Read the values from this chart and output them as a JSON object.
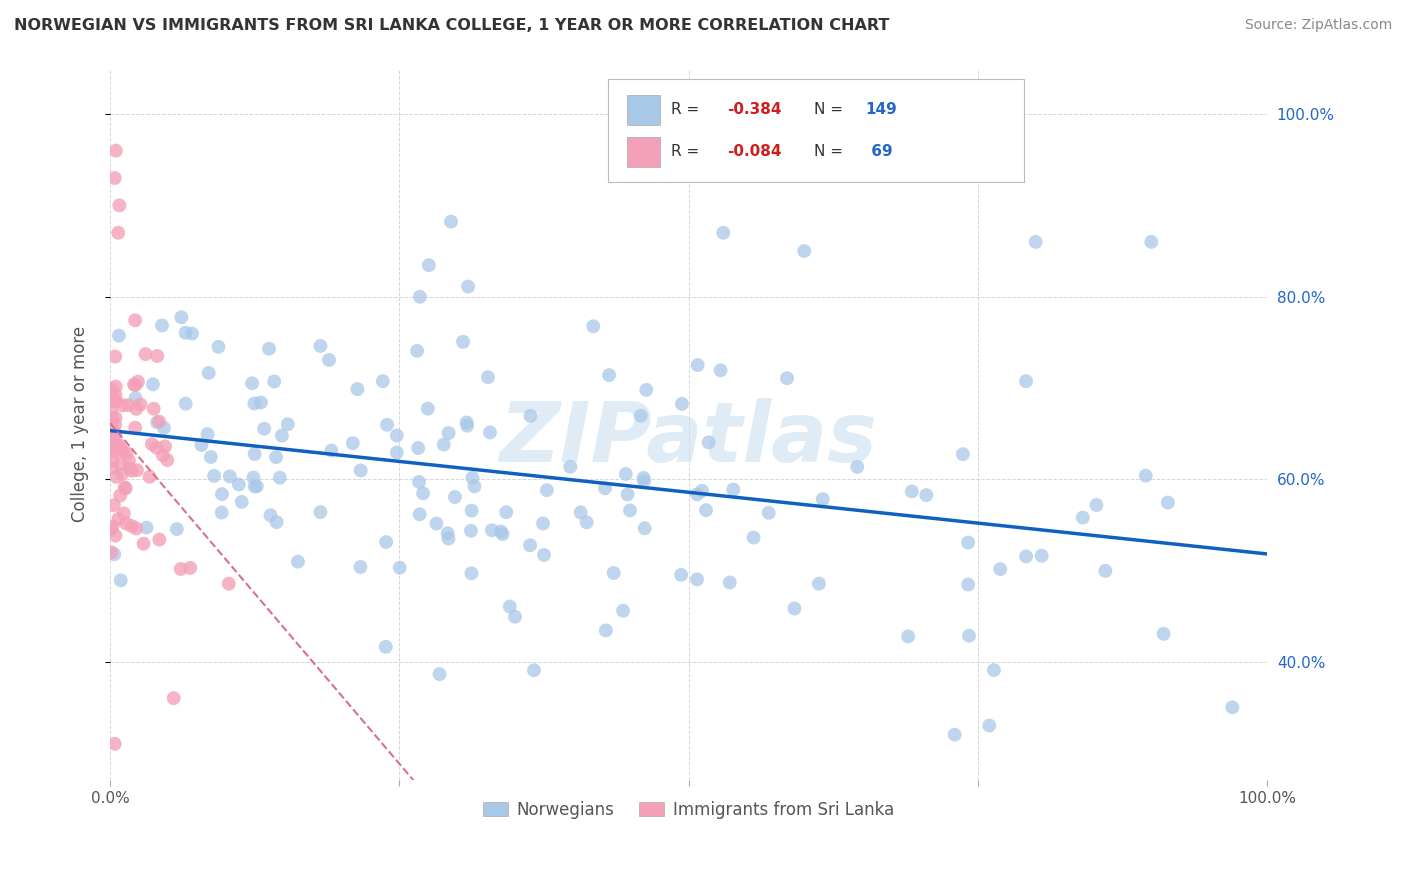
{
  "title": "NORWEGIAN VS IMMIGRANTS FROM SRI LANKA COLLEGE, 1 YEAR OR MORE CORRELATION CHART",
  "source_text": "Source: ZipAtlas.com",
  "ylabel": "College, 1 year or more",
  "watermark": "ZIPatlas",
  "legend_label1": "Norwegians",
  "legend_label2": "Immigrants from Sri Lanka",
  "blue_color": "#a8c8e8",
  "pink_color": "#f4a0b8",
  "blue_line_color": "#1060c0",
  "pink_line_color": "#d87090",
  "title_color": "#333333",
  "source_color": "#888888",
  "background_color": "#ffffff",
  "grid_color": "#cccccc",
  "r_color": "#cc2020",
  "n_color": "#2266cc",
  "legend_text_color": "#333333",
  "r1": -0.384,
  "n1": 149,
  "r2": -0.084,
  "n2": 69,
  "xlim": [
    0.0,
    1.0
  ],
  "ylim": [
    0.27,
    1.05
  ],
  "seed_blue": 77,
  "seed_pink": 88
}
